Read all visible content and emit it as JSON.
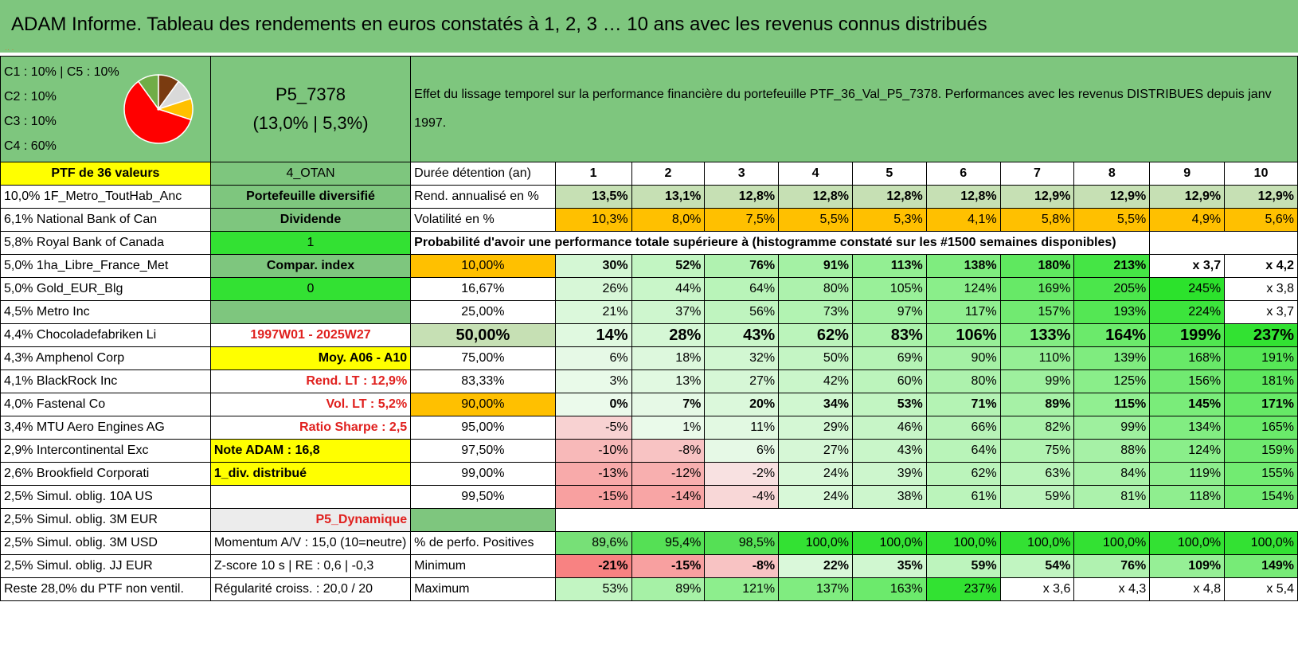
{
  "title": "ADAM Informe. Tableau des rendements en euros constatés à 1, 2, 3 … 10 ans avec les revenus connus distribués",
  "legend": [
    "C1 : 10% | C5 : 10%",
    "C2 : 10%",
    "C3 : 10%",
    "C4 : 60%"
  ],
  "pie": {
    "shares": [
      {
        "label": "C4",
        "value": 60,
        "color": "#ff0000"
      },
      {
        "label": "C1",
        "value": 10,
        "color": "#70ad47"
      },
      {
        "label": "C5",
        "value": 10,
        "color": "#7a3b10"
      },
      {
        "label": "C2",
        "value": 10,
        "color": "#d9d9d9"
      },
      {
        "label": "C3",
        "value": 10,
        "color": "#ffc000"
      }
    ]
  },
  "portfolio": {
    "name": "P5_7378",
    "stats": "(13,0% | 5,3%)"
  },
  "description": "Effet du lissage temporel sur la performance financière du portefeuille PTF_36_Val_P5_7378. Performances avec les revenus DISTRIBUES depuis janv 1997.",
  "ptf_label": "PTF de 36 valeurs",
  "holdings": [
    "10,0% 1F_Metro_ToutHab_Anc",
    "6,1% National Bank of Can",
    "5,8% Royal Bank of Canada",
    "5,0% 1ha_Libre_France_Met",
    "5,0% Gold_EUR_Blg",
    "4,5% Metro Inc",
    "4,4% Chocoladefabriken Li",
    "4,3% Amphenol Corp",
    "4,1% BlackRock Inc",
    "4,0% Fastenal Co",
    "3,4% MTU Aero Engines AG",
    "2,9% Intercontinental Exc",
    "2,6% Brookfield Corporati",
    "2,5% Simul. oblig. 10A US",
    "2,5% Simul. oblig. 3M EUR",
    "2,5% Simul. oblig. 3M USD",
    "2,5% Simul. oblig. JJ EUR",
    "Reste 28,0% du PTF non ventil."
  ],
  "info": {
    "category": "4_OTAN",
    "type": "Portefeuille diversifié",
    "dividend": "Dividende",
    "one": "1",
    "compar": "Compar. index",
    "zero": "0",
    "empty": "",
    "period": "1997W01 - 2025W27",
    "moy": "Moy. A06 - A10",
    "rend_lt": "Rend. LT : 12,9%",
    "vol_lt": "Vol. LT : 5,2%",
    "sharpe": "Ratio Sharpe : 2,5",
    "note": "Note ADAM : 16,8",
    "div": "1_div. distribué",
    "empty2": "",
    "dynamic": "P5_Dynamique",
    "momentum": "Momentum A/V : 15,0 (10=neutre)",
    "zscore": "Z-score 10 s | RE : 0,6 | -0,3",
    "regularite": "Régularité croiss. : 20,0 / 20"
  },
  "table": {
    "duration_label": "Durée détention (an)",
    "years": [
      "1",
      "2",
      "3",
      "4",
      "5",
      "6",
      "7",
      "8",
      "9",
      "10"
    ],
    "rend_label": "Rend. annualisé en %",
    "rend": [
      "13,5%",
      "13,1%",
      "12,8%",
      "12,8%",
      "12,8%",
      "12,8%",
      "12,9%",
      "12,9%",
      "12,9%",
      "12,9%"
    ],
    "vol_label": "Volatilité en %",
    "vol": [
      "10,3%",
      "8,0%",
      "7,5%",
      "5,5%",
      "5,3%",
      "4,1%",
      "5,8%",
      "5,5%",
      "4,9%",
      "5,6%"
    ],
    "prob_label": "Probabilité d'avoir une performance totale supérieure à (histogramme constaté sur les #1500 semaines disponibles)",
    "prob_rows": [
      {
        "p": "10,00%",
        "v": [
          "30%",
          "52%",
          "76%",
          "91%",
          "113%",
          "138%",
          "180%",
          "213%",
          "x 3,7",
          "x 4,2"
        ]
      },
      {
        "p": "16,67%",
        "v": [
          "26%",
          "44%",
          "64%",
          "80%",
          "105%",
          "124%",
          "169%",
          "205%",
          "245%",
          "x 3,8"
        ]
      },
      {
        "p": "25,00%",
        "v": [
          "21%",
          "37%",
          "56%",
          "73%",
          "97%",
          "117%",
          "157%",
          "193%",
          "224%",
          "x 3,7"
        ]
      },
      {
        "p": "50,00%",
        "v": [
          "14%",
          "28%",
          "43%",
          "62%",
          "83%",
          "106%",
          "133%",
          "164%",
          "199%",
          "237%"
        ]
      },
      {
        "p": "75,00%",
        "v": [
          "6%",
          "18%",
          "32%",
          "50%",
          "69%",
          "90%",
          "110%",
          "139%",
          "168%",
          "191%"
        ]
      },
      {
        "p": "83,33%",
        "v": [
          "3%",
          "13%",
          "27%",
          "42%",
          "60%",
          "80%",
          "99%",
          "125%",
          "156%",
          "181%"
        ]
      },
      {
        "p": "90,00%",
        "v": [
          "0%",
          "7%",
          "20%",
          "34%",
          "53%",
          "71%",
          "89%",
          "115%",
          "145%",
          "171%"
        ]
      },
      {
        "p": "95,00%",
        "v": [
          "-5%",
          "1%",
          "11%",
          "29%",
          "46%",
          "66%",
          "82%",
          "99%",
          "134%",
          "165%"
        ]
      },
      {
        "p": "97,50%",
        "v": [
          "-10%",
          "-8%",
          "6%",
          "27%",
          "43%",
          "64%",
          "75%",
          "88%",
          "124%",
          "159%"
        ]
      },
      {
        "p": "99,00%",
        "v": [
          "-13%",
          "-12%",
          "-2%",
          "24%",
          "39%",
          "62%",
          "63%",
          "84%",
          "119%",
          "155%"
        ]
      },
      {
        "p": "99,50%",
        "v": [
          "-15%",
          "-14%",
          "-4%",
          "24%",
          "38%",
          "61%",
          "59%",
          "81%",
          "118%",
          "154%"
        ]
      }
    ],
    "pos_label": "% de perfo. Positives",
    "pos": [
      "89,6%",
      "95,4%",
      "98,5%",
      "100,0%",
      "100,0%",
      "100,0%",
      "100,0%",
      "100,0%",
      "100,0%",
      "100,0%"
    ],
    "min_label": "Minimum",
    "min": [
      "-21%",
      "-15%",
      "-8%",
      "22%",
      "35%",
      "59%",
      "54%",
      "76%",
      "109%",
      "149%"
    ],
    "max_label": "Maximum",
    "max": [
      "53%",
      "89%",
      "121%",
      "137%",
      "163%",
      "237%",
      "x 3,6",
      "x 4,3",
      "x 4,8",
      "x 5,4"
    ]
  },
  "colors": {
    "title_bg": "#7ec67e",
    "yellow": "#ffff00",
    "orange": "#ffc000",
    "green_bright": "#33e133",
    "red_text": "#e0201e"
  }
}
